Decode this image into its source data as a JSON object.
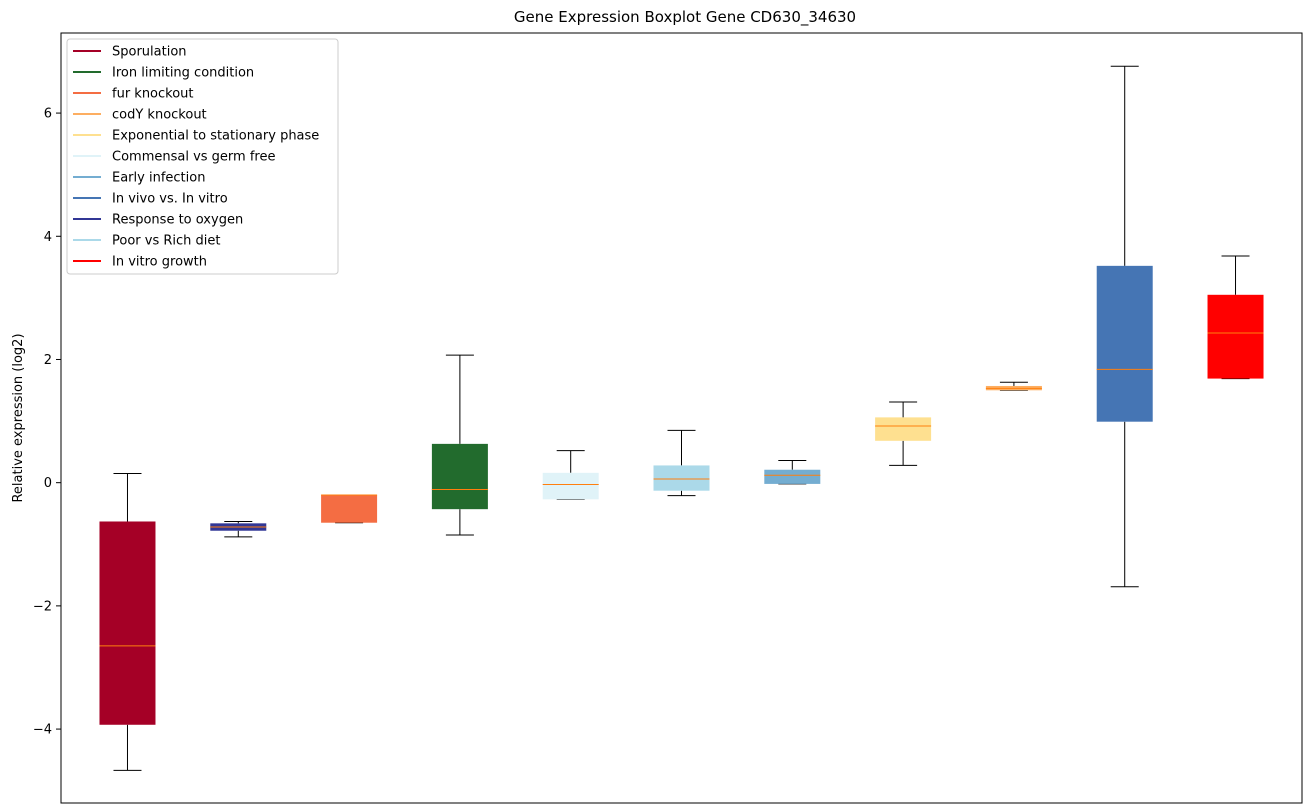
{
  "chart_data": {
    "type": "boxplot",
    "title": "Gene Expression Boxplot Gene CD630_34630",
    "ylabel": "Relative expression (log2)",
    "xlabel": "",
    "ylim": [
      -5.2,
      7.3
    ],
    "yticks": [
      -4,
      -2,
      0,
      2,
      4,
      6
    ],
    "ytick_labels": [
      "−4",
      "−2",
      "0",
      "2",
      "4",
      "6"
    ],
    "grid": false,
    "legend_position": "upper-left",
    "median_color": "#ff7f0e",
    "legend": [
      {
        "label": "Sporulation",
        "color": "#a50026"
      },
      {
        "label": "Iron limiting condition",
        "color": "#226b2d"
      },
      {
        "label": "fur knockout",
        "color": "#f46d43"
      },
      {
        "label": "codY knockout",
        "color": "#fdae61"
      },
      {
        "label": "Exponential to stationary phase",
        "color": "#fee090"
      },
      {
        "label": "Commensal vs germ free",
        "color": "#e0f3f8"
      },
      {
        "label": "Early infection",
        "color": "#74add1"
      },
      {
        "label": "In vivo vs. In vitro",
        "color": "#4575b4"
      },
      {
        "label": "Response to oxygen",
        "color": "#313695"
      },
      {
        "label": "Poor vs Rich diet",
        "color": "#abd9e9"
      },
      {
        "label": "In vitro growth",
        "color": "#ff0000"
      }
    ],
    "boxes": [
      {
        "group": "Sporulation",
        "color": "#a50026",
        "whisker_low": -4.67,
        "q1": -3.93,
        "median": -2.65,
        "q3": -0.63,
        "whisker_high": 0.15
      },
      {
        "group": "Response to oxygen",
        "color": "#313695",
        "whisker_low": -0.88,
        "q1": -0.78,
        "median": -0.72,
        "q3": -0.66,
        "whisker_high": -0.63
      },
      {
        "group": "fur knockout",
        "color": "#f46d43",
        "whisker_low": -0.65,
        "q1": -0.65,
        "median": -0.2,
        "q3": -0.2,
        "whisker_high": -0.2
      },
      {
        "group": "Iron limiting condition",
        "color": "#226b2d",
        "whisker_low": -0.85,
        "q1": -0.43,
        "median": -0.11,
        "q3": 0.63,
        "whisker_high": 2.07
      },
      {
        "group": "Commensal vs germ free",
        "color": "#e0f3f8",
        "whisker_low": -0.27,
        "q1": -0.27,
        "median": -0.03,
        "q3": 0.16,
        "whisker_high": 0.52
      },
      {
        "group": "Poor vs Rich diet",
        "color": "#abd9e9",
        "whisker_low": -0.21,
        "q1": -0.13,
        "median": 0.06,
        "q3": 0.28,
        "whisker_high": 0.85
      },
      {
        "group": "Early infection",
        "color": "#74add1",
        "whisker_low": -0.02,
        "q1": -0.02,
        "median": 0.12,
        "q3": 0.21,
        "whisker_high": 0.36
      },
      {
        "group": "Exponential to stationary phase",
        "color": "#fee090",
        "whisker_low": 0.28,
        "q1": 0.68,
        "median": 0.92,
        "q3": 1.06,
        "whisker_high": 1.31
      },
      {
        "group": "codY knockout",
        "color": "#fdae61",
        "whisker_low": 1.5,
        "q1": 1.5,
        "median": 1.53,
        "q3": 1.57,
        "whisker_high": 1.63
      },
      {
        "group": "In vivo vs. In vitro",
        "color": "#4575b4",
        "whisker_low": -1.69,
        "q1": 0.99,
        "median": 1.84,
        "q3": 3.52,
        "whisker_high": 6.76
      },
      {
        "group": "In vitro growth",
        "color": "#ff0000",
        "whisker_low": 1.69,
        "q1": 1.69,
        "median": 2.43,
        "q3": 3.05,
        "whisker_high": 3.68
      }
    ]
  }
}
